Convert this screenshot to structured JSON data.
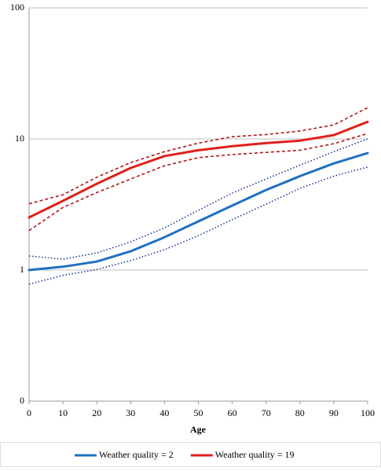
{
  "chart_data": {
    "type": "line",
    "x_label": "Age",
    "x": [
      0,
      10,
      20,
      30,
      40,
      50,
      60,
      70,
      80,
      90,
      100
    ],
    "series": [
      {
        "name": "Weather quality = 2",
        "color": "#1f70c1",
        "bound_color": "#1f3a93",
        "bound_style": "dotted",
        "values": [
          1.0,
          1.06,
          1.16,
          1.39,
          1.78,
          2.35,
          3.1,
          4.08,
          5.2,
          6.5,
          7.8
        ],
        "upper": [
          1.28,
          1.21,
          1.35,
          1.64,
          2.1,
          2.85,
          3.86,
          4.95,
          6.3,
          8.0,
          10.0
        ],
        "lower": [
          0.78,
          0.91,
          1.01,
          1.18,
          1.43,
          1.83,
          2.42,
          3.18,
          4.2,
          5.2,
          6.1
        ]
      },
      {
        "name": "Weather quality = 19",
        "color": "#e0201b",
        "bound_color": "#b01717",
        "bound_style": "dashed",
        "values": [
          2.52,
          3.37,
          4.55,
          6.0,
          7.4,
          8.2,
          8.8,
          9.3,
          9.7,
          10.7,
          13.5
        ],
        "upper": [
          3.2,
          3.75,
          5.1,
          6.6,
          8.0,
          9.3,
          10.4,
          10.8,
          11.5,
          12.8,
          17.3
        ],
        "lower": [
          2.0,
          3.0,
          3.9,
          4.95,
          6.25,
          7.2,
          7.6,
          7.9,
          8.2,
          9.2,
          11.0
        ]
      }
    ],
    "xlim": [
      0,
      100
    ],
    "xticks": [
      0,
      10,
      20,
      30,
      40,
      50,
      60,
      70,
      80,
      90,
      100
    ],
    "ylim": [
      0.1,
      100
    ],
    "yticks": [
      {
        "value": 0.1,
        "label": "0"
      },
      1,
      10,
      100
    ],
    "log_y": true,
    "grid": true,
    "legend": "bottom"
  }
}
